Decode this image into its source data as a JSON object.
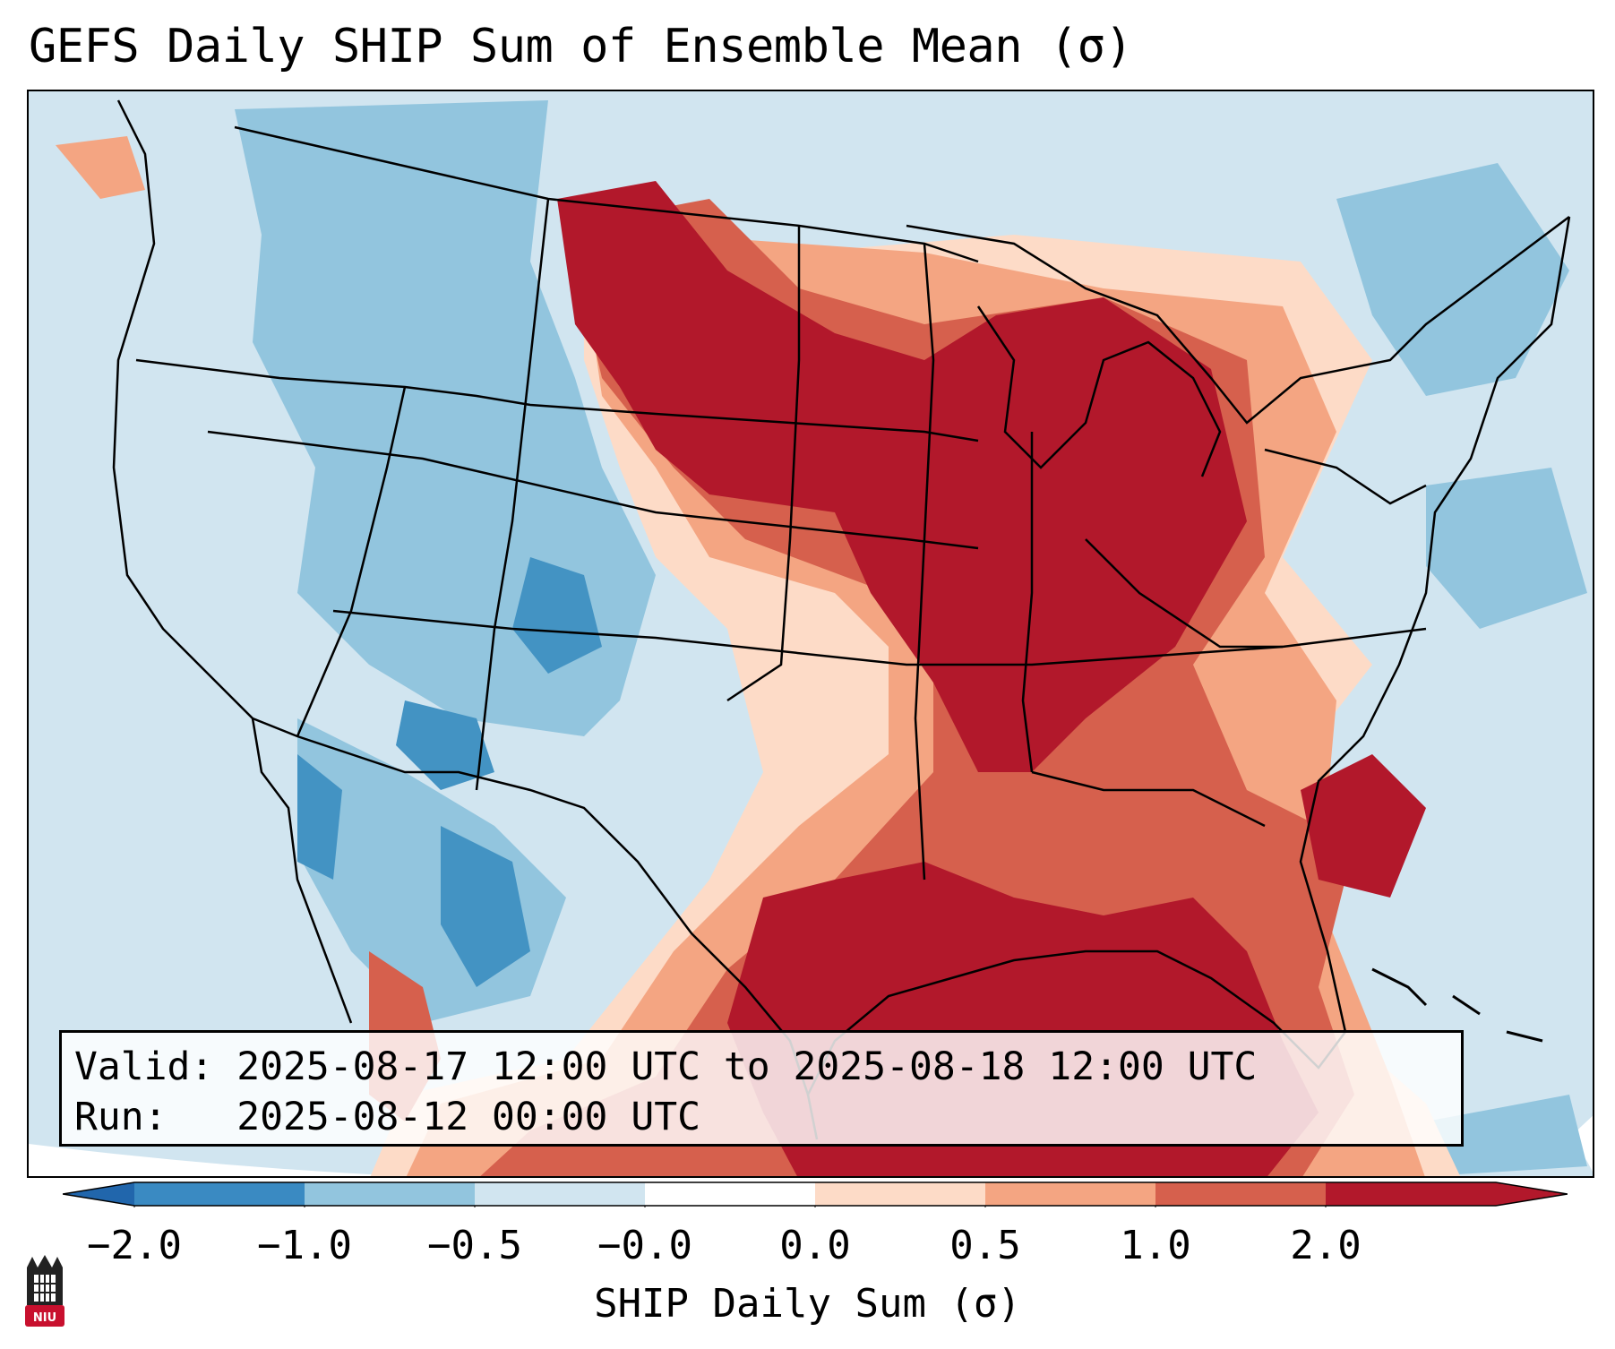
{
  "title": "GEFS Daily SHIP Sum of Ensemble Mean (σ)",
  "info": {
    "valid": "Valid: 2025-08-17 12:00 UTC to 2025-08-18 12:00 UTC",
    "run": "Run:   2025-08-12 00:00 UTC"
  },
  "colorbar": {
    "label": "SHIP Daily Sum (σ)",
    "ticks": [
      "−2.0",
      "−1.0",
      "−0.5",
      "−0.0",
      "0.0",
      "0.5",
      "1.0",
      "2.0"
    ],
    "colors": [
      "#3a8ac2",
      "#92c5de",
      "#d1e5f0",
      "#ffffff",
      "#fddbc7",
      "#f4a582",
      "#d6604d",
      "#b2182b"
    ],
    "extend_low_color": "#2166ac",
    "extend_high_color": "#b2182b"
  },
  "logo": {
    "text": "NIU",
    "color": "#c8102e"
  },
  "map": {
    "ocean_color": "#d1e5f0",
    "boundary_color": "#000000",
    "regions": [
      {
        "name": "great-lakes-midwest-max",
        "category": "> 1.0"
      },
      {
        "name": "gulf-of-mexico-max",
        "category": "> 1.0"
      },
      {
        "name": "intermountain-west-min",
        "category": "< -1.0"
      },
      {
        "name": "baja-mexico-min",
        "category": "< -1.0"
      }
    ]
  }
}
